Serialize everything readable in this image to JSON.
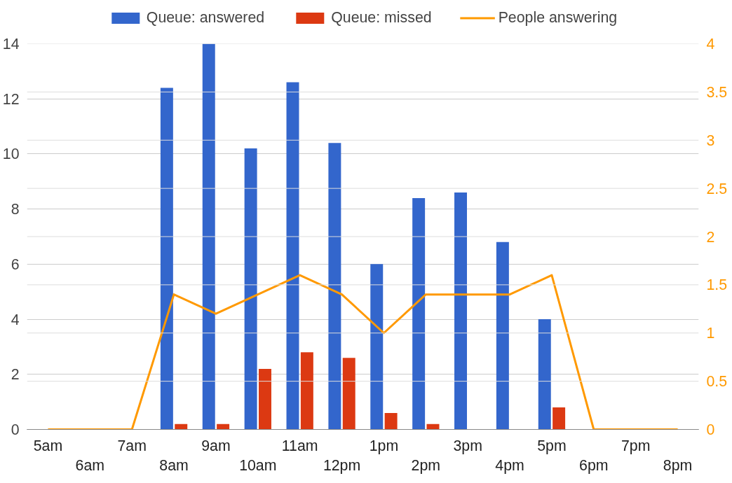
{
  "chart_data": {
    "type": "bar",
    "categories": [
      "5am",
      "6am",
      "7am",
      "8am",
      "9am",
      "10am",
      "11am",
      "12pm",
      "1pm",
      "2pm",
      "3pm",
      "4pm",
      "5pm",
      "6pm",
      "7pm",
      "8pm"
    ],
    "series": [
      {
        "name": "Queue: answered",
        "color": "#3366cc",
        "values": [
          0,
          0,
          0,
          12.4,
          14,
          10.2,
          12.6,
          10.4,
          6.0,
          8.4,
          8.6,
          6.8,
          4.0,
          0,
          0,
          0
        ]
      },
      {
        "name": "Queue: missed",
        "color": "#dc3912",
        "values": [
          0,
          0,
          0,
          0.2,
          0.2,
          2.2,
          2.8,
          2.6,
          0.6,
          0.2,
          0,
          0,
          0.8,
          0,
          0,
          0
        ]
      },
      {
        "name": "People answering",
        "color": "#ff9900",
        "type": "line",
        "axis": "y2",
        "values": [
          0,
          0,
          0,
          1.4,
          1.2,
          1.4,
          1.6,
          1.4,
          1.0,
          1.4,
          1.4,
          1.4,
          1.6,
          0,
          0,
          0
        ]
      }
    ],
    "ylim": [
      0,
      14
    ],
    "yticks": [
      0,
      2,
      4,
      6,
      8,
      10,
      12,
      14
    ],
    "y2lim": [
      0,
      4
    ],
    "y2ticks": [
      0,
      0.5,
      1,
      1.5,
      2,
      2.5,
      3,
      3.5,
      4
    ],
    "grid": true,
    "legend": "top"
  }
}
